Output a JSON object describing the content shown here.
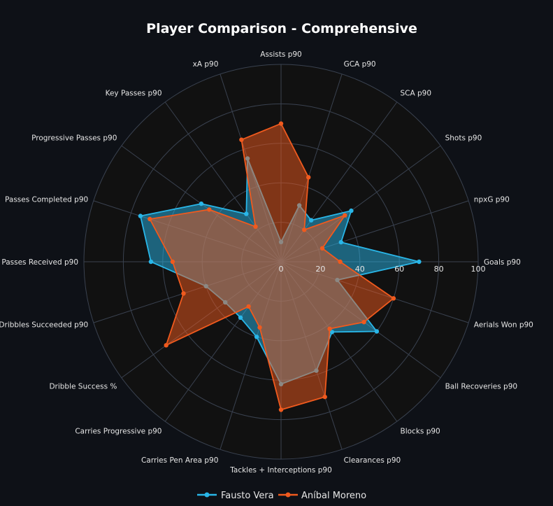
{
  "colors": {
    "background": "#0e1117",
    "plot_background": "#111111",
    "grid": "#3a4250",
    "series1": "#29b6e8",
    "series2": "#f05a1e"
  },
  "chart_data": {
    "type": "radar",
    "title": "Player Comparison - Comprehensive",
    "axes": [
      "Assists p90",
      "GCA p90",
      "SCA p90",
      "Shots p90",
      "npxG p90",
      "Goals p90",
      "Aerials Won p90",
      "Ball Recoveries p90",
      "Blocks p90",
      "Clearances p90",
      "Tackles + Interceptions p90",
      "Carries Pen Area p90",
      "Carries Progressive p90",
      "Dribble Success %",
      "Dribbles Succeeded p90",
      "Passes Received p90",
      "Passes Completed p90",
      "Progressive Passes p90",
      "Key Passes p90",
      "xA p90"
    ],
    "radial_range": [
      0,
      100
    ],
    "radial_ticks": [
      0,
      20,
      40,
      60,
      80,
      100
    ],
    "grid": true,
    "legend_placement": "bottom-center",
    "series": [
      {
        "name": "Fausto Vera",
        "color": "#29b6e8",
        "values": [
          10,
          30,
          26,
          44,
          32,
          70,
          30,
          60,
          44,
          58,
          62,
          40,
          35,
          35,
          40,
          66,
          75,
          50,
          30,
          55
        ]
      },
      {
        "name": "Aníbal Moreno",
        "color": "#f05a1e",
        "values": [
          70,
          45,
          20,
          40,
          22,
          30,
          60,
          52,
          42,
          72,
          75,
          35,
          28,
          72,
          52,
          55,
          70,
          45,
          22,
          65
        ]
      }
    ]
  }
}
